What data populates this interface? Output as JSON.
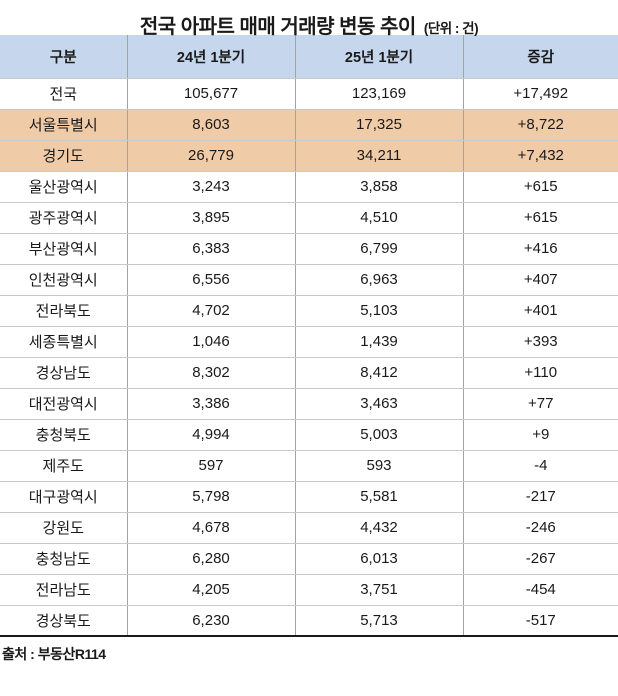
{
  "title": {
    "text": "전국 아파트 매매 거래량 변동 추이",
    "unit": "(단위 : 건)"
  },
  "table": {
    "columns": [
      "구분",
      "24년 1분기",
      "25년 1분기",
      "증감"
    ],
    "rows": [
      {
        "region": "전국",
        "q1_2024": "105,677",
        "q1_2025": "123,169",
        "change": "+17,492",
        "highlight": false
      },
      {
        "region": "서울특별시",
        "q1_2024": "8,603",
        "q1_2025": "17,325",
        "change": "+8,722",
        "highlight": true
      },
      {
        "region": "경기도",
        "q1_2024": "26,779",
        "q1_2025": "34,211",
        "change": "+7,432",
        "highlight": true
      },
      {
        "region": "울산광역시",
        "q1_2024": "3,243",
        "q1_2025": "3,858",
        "change": "+615",
        "highlight": false
      },
      {
        "region": "광주광역시",
        "q1_2024": "3,895",
        "q1_2025": "4,510",
        "change": "+615",
        "highlight": false
      },
      {
        "region": "부산광역시",
        "q1_2024": "6,383",
        "q1_2025": "6,799",
        "change": "+416",
        "highlight": false
      },
      {
        "region": "인천광역시",
        "q1_2024": "6,556",
        "q1_2025": "6,963",
        "change": "+407",
        "highlight": false
      },
      {
        "region": "전라북도",
        "q1_2024": "4,702",
        "q1_2025": "5,103",
        "change": "+401",
        "highlight": false
      },
      {
        "region": "세종특별시",
        "q1_2024": "1,046",
        "q1_2025": "1,439",
        "change": "+393",
        "highlight": false
      },
      {
        "region": "경상남도",
        "q1_2024": "8,302",
        "q1_2025": "8,412",
        "change": "+110",
        "highlight": false
      },
      {
        "region": "대전광역시",
        "q1_2024": "3,386",
        "q1_2025": "3,463",
        "change": "+77",
        "highlight": false
      },
      {
        "region": "충청북도",
        "q1_2024": "4,994",
        "q1_2025": "5,003",
        "change": "+9",
        "highlight": false
      },
      {
        "region": "제주도",
        "q1_2024": "597",
        "q1_2025": "593",
        "change": "-4",
        "highlight": false
      },
      {
        "region": "대구광역시",
        "q1_2024": "5,798",
        "q1_2025": "5,581",
        "change": "-217",
        "highlight": false
      },
      {
        "region": "강원도",
        "q1_2024": "4,678",
        "q1_2025": "4,432",
        "change": "-246",
        "highlight": false
      },
      {
        "region": "충청남도",
        "q1_2024": "6,280",
        "q1_2025": "6,013",
        "change": "-267",
        "highlight": false
      },
      {
        "region": "전라남도",
        "q1_2024": "4,205",
        "q1_2025": "3,751",
        "change": "-454",
        "highlight": false
      },
      {
        "region": "경상북도",
        "q1_2024": "6,230",
        "q1_2025": "5,713",
        "change": "-517",
        "highlight": false
      }
    ]
  },
  "source": "출처 : 부동산R114",
  "colors": {
    "header_bg": "#c6d6ec",
    "highlight_bg": "#f0cba8",
    "border_mid": "#a3a3a3",
    "border_light": "#c9c9c9",
    "border_dark": "#1a1a1a",
    "text": "#1a1a1a"
  },
  "chart_data": {
    "type": "table",
    "title": "전국 아파트 매매 거래량 변동 추이",
    "unit_note": "(단위 : 건)",
    "columns": [
      "구분",
      "24년 1분기",
      "25년 1분기",
      "증감"
    ],
    "rows": [
      [
        "전국",
        105677,
        123169,
        17492
      ],
      [
        "서울특별시",
        8603,
        17325,
        8722
      ],
      [
        "경기도",
        26779,
        34211,
        7432
      ],
      [
        "울산광역시",
        3243,
        3858,
        615
      ],
      [
        "광주광역시",
        3895,
        4510,
        615
      ],
      [
        "부산광역시",
        6383,
        6799,
        416
      ],
      [
        "인천광역시",
        6556,
        6963,
        407
      ],
      [
        "전라북도",
        4702,
        5103,
        401
      ],
      [
        "세종특별시",
        1046,
        1439,
        393
      ],
      [
        "경상남도",
        8302,
        8412,
        110
      ],
      [
        "대전광역시",
        3386,
        3463,
        77
      ],
      [
        "충청북도",
        4994,
        5003,
        9
      ],
      [
        "제주도",
        597,
        593,
        -4
      ],
      [
        "대구광역시",
        5798,
        5581,
        -217
      ],
      [
        "강원도",
        4678,
        4432,
        -246
      ],
      [
        "충청남도",
        6280,
        6013,
        -267
      ],
      [
        "전라남도",
        4205,
        3751,
        -454
      ],
      [
        "경상북도",
        6230,
        5713,
        -517
      ]
    ],
    "highlighted_rows": [
      "서울특별시",
      "경기도"
    ],
    "source": "출처 : 부동산R114",
    "legend_position": "none",
    "grid": true
  }
}
